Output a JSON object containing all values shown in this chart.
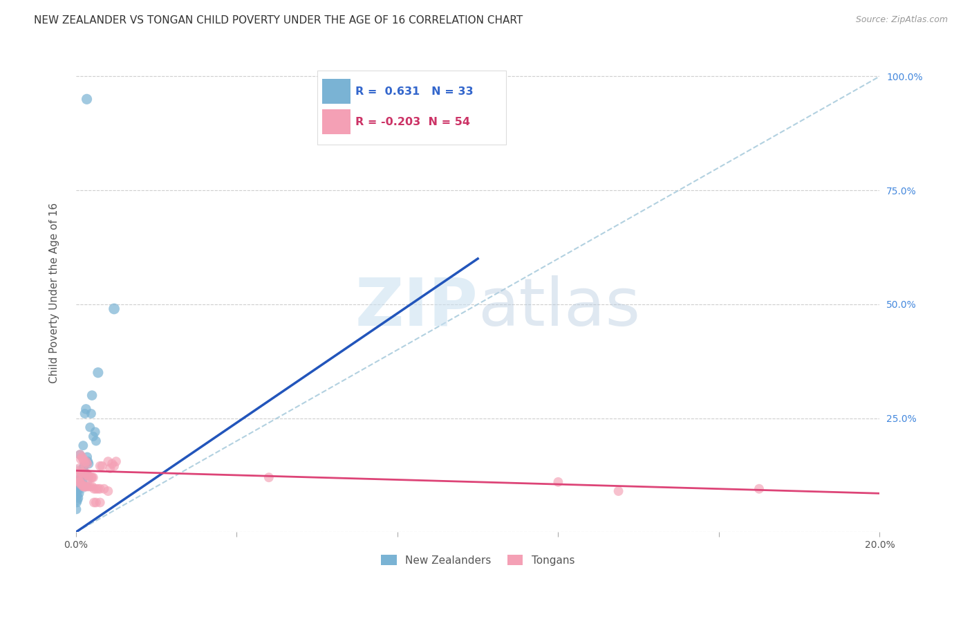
{
  "title": "NEW ZEALANDER VS TONGAN CHILD POVERTY UNDER THE AGE OF 16 CORRELATION CHART",
  "source": "Source: ZipAtlas.com",
  "ylabel": "Child Poverty Under the Age of 16",
  "xlim": [
    0.0,
    0.2
  ],
  "ylim": [
    0.0,
    1.05
  ],
  "xticks": [
    0.0,
    0.04,
    0.08,
    0.12,
    0.16,
    0.2
  ],
  "xticklabels": [
    "0.0%",
    "",
    "",
    "",
    "",
    "20.0%"
  ],
  "yticks": [
    0.0,
    0.25,
    0.5,
    0.75,
    1.0
  ],
  "yticklabels_right": [
    "",
    "25.0%",
    "50.0%",
    "75.0%",
    "100.0%"
  ],
  "watermark": "ZIPatlas",
  "nz_color": "#7ab3d4",
  "tongan_color": "#f4a0b5",
  "nz_R": 0.631,
  "nz_N": 33,
  "tongan_R": -0.203,
  "tongan_N": 54,
  "nz_line_color": "#2255bb",
  "tongan_line_color": "#dd4477",
  "diagonal_color": "#aaccdd",
  "nz_line_x0": 0.0,
  "nz_line_y0": 0.0,
  "nz_line_x1": 0.1,
  "nz_line_y1": 0.6,
  "tongan_line_x0": 0.0,
  "tongan_line_y0": 0.135,
  "tongan_line_x1": 0.2,
  "tongan_line_y1": 0.085,
  "nz_points": [
    [
      0.0027,
      0.95
    ],
    [
      0.0095,
      0.49
    ],
    [
      0.0055,
      0.35
    ],
    [
      0.004,
      0.3
    ],
    [
      0.0025,
      0.27
    ],
    [
      0.0022,
      0.26
    ],
    [
      0.0038,
      0.26
    ],
    [
      0.0035,
      0.23
    ],
    [
      0.0048,
      0.22
    ],
    [
      0.0043,
      0.21
    ],
    [
      0.005,
      0.2
    ],
    [
      0.0018,
      0.19
    ],
    [
      0.001,
      0.17
    ],
    [
      0.0028,
      0.165
    ],
    [
      0.003,
      0.155
    ],
    [
      0.0032,
      0.15
    ],
    [
      0.002,
      0.145
    ],
    [
      0.0018,
      0.14
    ],
    [
      0.0022,
      0.13
    ],
    [
      0.0015,
      0.125
    ],
    [
      0.0012,
      0.12
    ],
    [
      0.0008,
      0.115
    ],
    [
      0.0016,
      0.11
    ],
    [
      0.001,
      0.105
    ],
    [
      0.0006,
      0.1
    ],
    [
      0.0005,
      0.095
    ],
    [
      0.0004,
      0.09
    ],
    [
      0.0008,
      0.085
    ],
    [
      0.0003,
      0.08
    ],
    [
      0.0006,
      0.075
    ],
    [
      0.0004,
      0.07
    ],
    [
      0.0002,
      0.065
    ],
    [
      0.0001,
      0.05
    ]
  ],
  "nz_sizes": [
    120,
    130,
    120,
    110,
    110,
    100,
    100,
    100,
    100,
    100,
    100,
    100,
    100,
    100,
    100,
    100,
    100,
    100,
    100,
    100,
    100,
    100,
    100,
    100,
    100,
    100,
    100,
    100,
    100,
    100,
    100,
    100,
    100
  ],
  "nz_big_cluster": [
    [
      0.0005,
      0.115,
      900
    ]
  ],
  "tongan_points": [
    [
      0.001,
      0.17
    ],
    [
      0.0012,
      0.16
    ],
    [
      0.0015,
      0.165
    ],
    [
      0.0018,
      0.16
    ],
    [
      0.002,
      0.155
    ],
    [
      0.0022,
      0.15
    ],
    [
      0.0025,
      0.155
    ],
    [
      0.0028,
      0.15
    ],
    [
      0.0008,
      0.14
    ],
    [
      0.001,
      0.135
    ],
    [
      0.0012,
      0.13
    ],
    [
      0.0015,
      0.13
    ],
    [
      0.0018,
      0.13
    ],
    [
      0.002,
      0.125
    ],
    [
      0.0025,
      0.13
    ],
    [
      0.0028,
      0.125
    ],
    [
      0.003,
      0.125
    ],
    [
      0.0032,
      0.12
    ],
    [
      0.0038,
      0.12
    ],
    [
      0.004,
      0.12
    ],
    [
      0.0043,
      0.12
    ],
    [
      0.0005,
      0.12
    ],
    [
      0.0006,
      0.115
    ],
    [
      0.0008,
      0.11
    ],
    [
      0.001,
      0.11
    ],
    [
      0.0012,
      0.105
    ],
    [
      0.0015,
      0.105
    ],
    [
      0.0018,
      0.1
    ],
    [
      0.002,
      0.1
    ],
    [
      0.0022,
      0.1
    ],
    [
      0.0025,
      0.1
    ],
    [
      0.003,
      0.1
    ],
    [
      0.0035,
      0.1
    ],
    [
      0.004,
      0.1
    ],
    [
      0.0045,
      0.095
    ],
    [
      0.005,
      0.095
    ],
    [
      0.0055,
      0.095
    ],
    [
      0.006,
      0.095
    ],
    [
      0.007,
      0.095
    ],
    [
      0.008,
      0.09
    ],
    [
      0.006,
      0.145
    ],
    [
      0.0065,
      0.145
    ],
    [
      0.008,
      0.155
    ],
    [
      0.0085,
      0.14
    ],
    [
      0.009,
      0.15
    ],
    [
      0.0095,
      0.145
    ],
    [
      0.01,
      0.155
    ],
    [
      0.0045,
      0.065
    ],
    [
      0.005,
      0.065
    ],
    [
      0.006,
      0.065
    ],
    [
      0.12,
      0.11
    ],
    [
      0.135,
      0.09
    ],
    [
      0.17,
      0.095
    ],
    [
      0.048,
      0.12
    ]
  ],
  "tongan_sizes": [
    100,
    100,
    100,
    100,
    100,
    100,
    100,
    100,
    100,
    100,
    100,
    100,
    100,
    100,
    100,
    100,
    100,
    100,
    100,
    100,
    100,
    100,
    100,
    100,
    100,
    100,
    100,
    100,
    100,
    100,
    100,
    100,
    100,
    100,
    100,
    100,
    100,
    100,
    100,
    100,
    100,
    100,
    100,
    100,
    100,
    100,
    100,
    100,
    100,
    100,
    100,
    100,
    100,
    100
  ],
  "background_color": "#ffffff",
  "grid_color": "#cccccc"
}
